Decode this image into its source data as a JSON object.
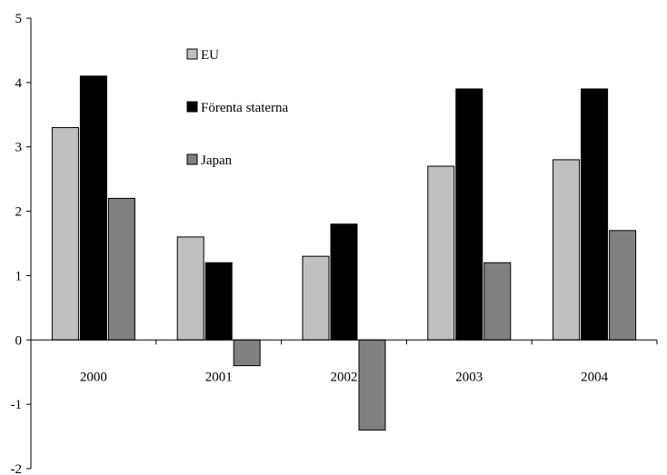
{
  "chart_data": {
    "type": "bar",
    "title": "",
    "xlabel": "",
    "ylabel": "",
    "categories": [
      "2000",
      "2001",
      "2002",
      "2003",
      "2004"
    ],
    "series": [
      {
        "name": "EU",
        "color": "#c0c0c0",
        "values": [
          3.3,
          1.6,
          1.3,
          2.7,
          2.8
        ]
      },
      {
        "name": "Förenta staterna",
        "color": "#000000",
        "values": [
          4.1,
          1.2,
          1.8,
          3.9,
          3.9
        ]
      },
      {
        "name": "Japan",
        "color": "#808080",
        "values": [
          2.2,
          -0.4,
          -1.4,
          1.2,
          1.7
        ]
      }
    ],
    "ylim": [
      -2,
      5
    ],
    "yticks": [
      -2,
      -1,
      0,
      1,
      2,
      3,
      4,
      5
    ],
    "ytick_labels": [
      "-2",
      "-1",
      "0",
      "1",
      "2",
      "3",
      "4",
      "5"
    ],
    "grid": false,
    "legend_position": "top-center-left"
  }
}
